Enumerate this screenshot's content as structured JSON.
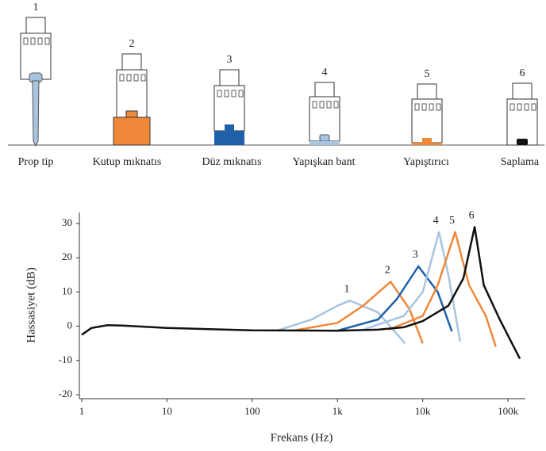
{
  "mounts": [
    {
      "number": "1",
      "label": "Prop tip"
    },
    {
      "number": "2",
      "label": "Kutup mıknatıs"
    },
    {
      "number": "3",
      "label": "Düz mıknatıs"
    },
    {
      "number": "4",
      "label": "Yapışkan bant"
    },
    {
      "number": "5",
      "label": "Yapıştırıcı"
    },
    {
      "number": "6",
      "label": "Saplama"
    }
  ],
  "chart_data": {
    "type": "line",
    "x_label": "Frekans (Hz)",
    "y_label": "Hassasiyet (dB)",
    "log_x": true,
    "xlim": [
      1,
      150000
    ],
    "ylim": [
      -20,
      30
    ],
    "xticks": [
      1,
      10,
      100,
      {
        "value": 1000,
        "label": "1k"
      },
      {
        "value": 10000,
        "label": "10k"
      },
      {
        "value": 100000,
        "label": "100k"
      }
    ],
    "yticks": [
      -20,
      -10,
      0,
      10,
      20,
      30
    ],
    "series": [
      {
        "name": "1",
        "color": "#a9c4e0",
        "x": [
          200,
          500,
          1000,
          1400,
          3000,
          6200
        ],
        "y": [
          -1.2,
          2,
          6,
          7.5,
          4,
          -5
        ]
      },
      {
        "name": "2",
        "color": "#f0883a",
        "x": [
          300,
          1000,
          2000,
          4200,
          7000,
          10000
        ],
        "y": [
          -1.3,
          1,
          6,
          13,
          5,
          -5
        ]
      },
      {
        "name": "3",
        "color": "#2060a8",
        "x": [
          1000,
          3000,
          5000,
          8900,
          15000,
          22000
        ],
        "y": [
          -1.3,
          2,
          8,
          17.5,
          10,
          -1.5
        ]
      },
      {
        "name": "4",
        "color": "#a9c4e0",
        "x": [
          2000,
          6000,
          10000,
          15500,
          20000,
          27500
        ],
        "y": [
          -1,
          3,
          10,
          27.5,
          15,
          -4.5
        ]
      },
      {
        "name": "5",
        "color": "#f0883a",
        "x": [
          4000,
          10000,
          15000,
          24000,
          35000,
          55000,
          72000
        ],
        "y": [
          -1,
          3,
          12,
          27.5,
          12,
          3,
          -6
        ]
      },
      {
        "name": "6",
        "color": "#111111",
        "x": [
          1,
          1.3,
          2,
          3,
          10,
          100,
          1000,
          3000,
          6000,
          10000,
          20000,
          30000,
          40700,
          52000,
          80000,
          138000
        ],
        "y": [
          -2.5,
          -0.5,
          0.3,
          0.2,
          -0.5,
          -1.2,
          -1.3,
          -1,
          -0.3,
          1.5,
          6,
          14,
          29,
          12,
          2,
          -9.5
        ]
      }
    ]
  }
}
